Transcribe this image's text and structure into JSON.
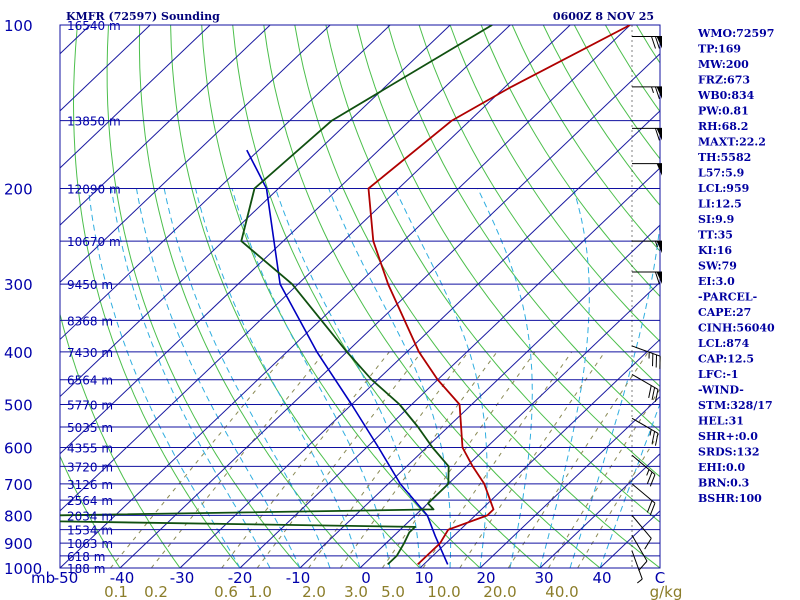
{
  "header": {
    "station": "KMFR (72597) Sounding",
    "time": "0600Z  8 NOV 25"
  },
  "colors": {
    "isobar": "#1010a0",
    "isotherm": "#1a1aa0",
    "dry_adiabat": "#4cbf4c",
    "moist_adiabat": "#30aee0",
    "mixing_ratio": "#8a8a55",
    "temperature": "#b00000",
    "dewpoint": "#105010",
    "parcel": "#0000c0",
    "wind": "#000000"
  },
  "axis": {
    "bottom_left_unit": "mb",
    "temperature_unit": "C",
    "mixing_unit": "g/kg"
  },
  "chart_data": {
    "type": "skew-t",
    "pressure_levels": [
      100,
      200,
      300,
      400,
      500,
      600,
      700,
      800,
      900,
      1000
    ],
    "height_labels": [
      {
        "p": 100,
        "label": "16540 m"
      },
      {
        "p": 150,
        "label": "13850 m"
      },
      {
        "p": 200,
        "label": "12090 m"
      },
      {
        "p": 250,
        "label": "10670 m"
      },
      {
        "p": 300,
        "label": "9450 m"
      },
      {
        "p": 350,
        "label": "8368 m"
      },
      {
        "p": 400,
        "label": "7430 m"
      },
      {
        "p": 450,
        "label": "6564 m"
      },
      {
        "p": 500,
        "label": "5770 m"
      },
      {
        "p": 550,
        "label": "5035 m"
      },
      {
        "p": 600,
        "label": "4355 m"
      },
      {
        "p": 650,
        "label": "3720 m"
      },
      {
        "p": 700,
        "label": "3126 m"
      },
      {
        "p": 750,
        "label": "2564 m"
      },
      {
        "p": 800,
        "label": "2034 m"
      },
      {
        "p": 850,
        "label": "1534 m"
      },
      {
        "p": 900,
        "label": "1063 m"
      },
      {
        "p": 950,
        "label": "618 m"
      },
      {
        "p": 1000,
        "label": "188 m"
      }
    ],
    "temperature_ticks": [
      "-50",
      "-40",
      "-30",
      "-20",
      "-10",
      "0",
      "10",
      "20",
      "30",
      "40",
      "C"
    ],
    "mixing_ratio_labels": [
      "0.1",
      "0.2",
      "0.6",
      "1.0",
      "2.0",
      "3.0",
      "5.0",
      "10.0",
      "20.0",
      "40.0",
      "g/kg"
    ],
    "temperature": [
      {
        "p": 100,
        "t": -50
      },
      {
        "p": 130,
        "t": -59
      },
      {
        "p": 150,
        "t": -63
      },
      {
        "p": 200,
        "t": -65
      },
      {
        "p": 250,
        "t": -55
      },
      {
        "p": 300,
        "t": -45
      },
      {
        "p": 400,
        "t": -28
      },
      {
        "p": 450,
        "t": -20
      },
      {
        "p": 500,
        "t": -12
      },
      {
        "p": 600,
        "t": -4
      },
      {
        "p": 650,
        "t": 1
      },
      {
        "p": 700,
        "t": 6
      },
      {
        "p": 780,
        "t": 12
      },
      {
        "p": 800,
        "t": 12
      },
      {
        "p": 850,
        "t": 8
      },
      {
        "p": 900,
        "t": 9
      },
      {
        "p": 950,
        "t": 9
      },
      {
        "p": 985,
        "t": 9
      }
    ],
    "dewpoint": [
      {
        "p": 100,
        "t": -73
      },
      {
        "p": 150,
        "t": -83
      },
      {
        "p": 200,
        "t": -84
      },
      {
        "p": 250,
        "t": -77
      },
      {
        "p": 300,
        "t": -61
      },
      {
        "p": 400,
        "t": -40
      },
      {
        "p": 450,
        "t": -31
      },
      {
        "p": 500,
        "t": -22
      },
      {
        "p": 550,
        "t": -15
      },
      {
        "p": 600,
        "t": -9
      },
      {
        "p": 650,
        "t": -3
      },
      {
        "p": 700,
        "t": 0
      },
      {
        "p": 760,
        "t": 0
      },
      {
        "p": 780,
        "t": 2
      },
      {
        "p": 800,
        "t": -60
      },
      {
        "p": 820,
        "t": -60
      },
      {
        "p": 840,
        "t": 2
      },
      {
        "p": 860,
        "t": 2
      },
      {
        "p": 900,
        "t": 3
      },
      {
        "p": 950,
        "t": 4
      },
      {
        "p": 985,
        "t": 4
      }
    ],
    "parcel": [
      {
        "p": 170,
        "t": -92
      },
      {
        "p": 200,
        "t": -82
      },
      {
        "p": 300,
        "t": -63
      },
      {
        "p": 400,
        "t": -45
      },
      {
        "p": 500,
        "t": -30
      },
      {
        "p": 600,
        "t": -18
      },
      {
        "p": 700,
        "t": -8
      },
      {
        "p": 800,
        "t": 2
      },
      {
        "p": 874,
        "t": 7
      },
      {
        "p": 985,
        "t": 14
      }
    ],
    "wind_barbs_dir_deg": [
      {
        "p": 105,
        "dir": 270,
        "spd": 70
      },
      {
        "p": 130,
        "dir": 270,
        "spd": 65
      },
      {
        "p": 155,
        "dir": 270,
        "spd": 60
      },
      {
        "p": 180,
        "dir": 270,
        "spd": 50
      },
      {
        "p": 250,
        "dir": 270,
        "spd": 55
      },
      {
        "p": 285,
        "dir": 270,
        "spd": 60
      },
      {
        "p": 390,
        "dir": 290,
        "spd": 35
      },
      {
        "p": 440,
        "dir": 300,
        "spd": 30
      },
      {
        "p": 530,
        "dir": 300,
        "spd": 25
      },
      {
        "p": 620,
        "dir": 310,
        "spd": 25
      },
      {
        "p": 700,
        "dir": 310,
        "spd": 20
      },
      {
        "p": 800,
        "dir": 320,
        "spd": 10
      },
      {
        "p": 870,
        "dir": 330,
        "spd": 10
      },
      {
        "p": 930,
        "dir": 340,
        "spd": 5
      }
    ]
  },
  "stats": [
    "WMO:72597",
    "TP:169",
    "MW:200",
    "FRZ:673",
    "WB0:834",
    "PW:0.81",
    "RH:68.2",
    "MAXT:22.2",
    "TH:5582",
    "L57:5.9",
    "LCL:959",
    "LI:12.5",
    "SI:9.9",
    "TT:35",
    "KI:16",
    "SW:79",
    "EI:3.0",
    "-PARCEL-",
    "CAPE:27",
    "CINH:56040",
    "LCL:874",
    "CAP:12.5",
    "LFC:-1",
    "-WIND-",
    "STM:328/17",
    "HEL:31",
    "SHR+:0.0",
    "SRDS:132",
    "EHI:0.0",
    "BRN:0.3",
    "BSHR:100"
  ]
}
